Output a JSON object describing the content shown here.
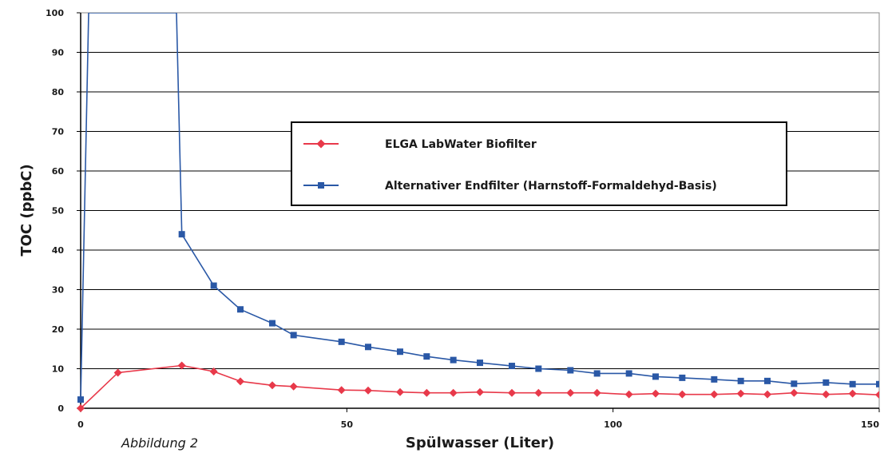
{
  "chart_data": {
    "type": "line",
    "xlabel": "Spülwasser (Liter)",
    "ylabel": "TOC (ppbC)",
    "caption": "Abbildung 2",
    "xlim": [
      0,
      150
    ],
    "ylim": [
      0,
      100
    ],
    "x_ticks": [
      0,
      50,
      100,
      150
    ],
    "y_ticks": [
      0,
      10,
      20,
      30,
      40,
      50,
      60,
      70,
      80,
      90,
      100
    ],
    "grid": "horizontal",
    "legend_position": "center",
    "series": [
      {
        "name": "ELGA LabWater Biofilter",
        "color": "#e8394a",
        "marker": "diamond",
        "x": [
          0,
          7,
          19,
          25,
          30,
          36,
          40,
          49,
          54,
          60,
          65,
          70,
          75,
          81,
          86,
          92,
          97,
          103,
          108,
          113,
          119,
          124,
          129,
          134,
          140,
          145,
          150
        ],
        "y": [
          0,
          9,
          10.8,
          9.3,
          6.8,
          5.8,
          5.5,
          4.6,
          4.5,
          4.1,
          3.9,
          3.9,
          4.1,
          3.9,
          3.9,
          3.9,
          3.9,
          3.5,
          3.7,
          3.5,
          3.5,
          3.7,
          3.5,
          3.9,
          3.5,
          3.7,
          3.4
        ]
      },
      {
        "name": "Alternativer Endfilter (Harnstoff-Formaldehyd-Basis)",
        "color": "#2a58a6",
        "marker": "square",
        "x": [
          0,
          1.5,
          18,
          19,
          25,
          30,
          36,
          40,
          49,
          54,
          60,
          65,
          70,
          75,
          81,
          86,
          92,
          97,
          103,
          108,
          113,
          119,
          124,
          129,
          134,
          140,
          145,
          150
        ],
        "y": [
          2.2,
          100,
          100,
          44,
          31,
          25,
          21.5,
          18.5,
          16.8,
          15.5,
          14.3,
          13.1,
          12.2,
          11.5,
          10.7,
          10,
          9.6,
          8.8,
          8.8,
          8,
          7.7,
          7.3,
          6.9,
          6.9,
          6.2,
          6.5,
          6.1,
          6.1
        ],
        "markers": [
          true,
          false,
          false,
          true,
          true,
          true,
          true,
          true,
          true,
          true,
          true,
          true,
          true,
          true,
          true,
          true,
          true,
          true,
          true,
          true,
          true,
          true,
          true,
          true,
          true,
          true,
          true,
          true
        ]
      }
    ]
  }
}
